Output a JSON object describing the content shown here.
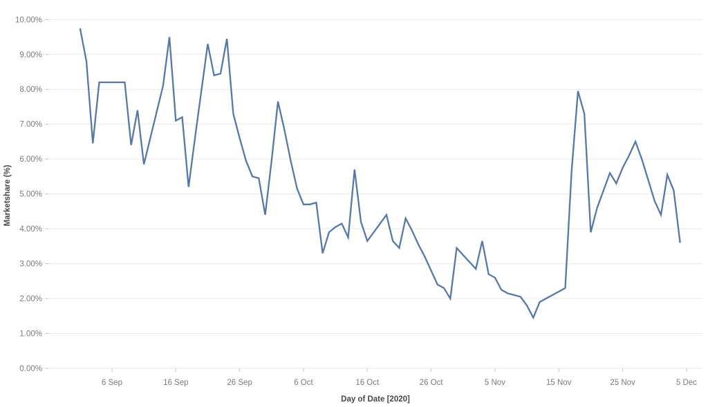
{
  "chart_data": {
    "type": "line",
    "title": "",
    "xlabel": "Day of Date [2020]",
    "ylabel": "Marketshare (%)",
    "ylim": [
      0,
      10
    ],
    "y_tick_labels": [
      "0.00%",
      "1.00%",
      "2.00%",
      "3.00%",
      "4.00%",
      "5.00%",
      "6.00%",
      "7.00%",
      "8.00%",
      "9.00%",
      "10.00%"
    ],
    "x_tick_labels": [
      "6 Sep",
      "16 Sep",
      "26 Sep",
      "6 Oct",
      "16 Oct",
      "26 Oct",
      "5 Nov",
      "15 Nov",
      "25 Nov",
      "5 Dec"
    ],
    "x_tick_day_index": [
      5,
      15,
      25,
      35,
      45,
      55,
      65,
      75,
      85,
      95
    ],
    "grid": "horizontal",
    "legend": "none",
    "series": [
      {
        "name": "Marketshare",
        "color": "#5578a8",
        "dates": [
          "1 Sep",
          "2 Sep",
          "3 Sep",
          "4 Sep",
          "5 Sep",
          "6 Sep",
          "7 Sep",
          "8 Sep",
          "9 Sep",
          "10 Sep",
          "11 Sep",
          "12 Sep",
          "13 Sep",
          "14 Sep",
          "15 Sep",
          "16 Sep",
          "17 Sep",
          "18 Sep",
          "19 Sep",
          "20 Sep",
          "21 Sep",
          "22 Sep",
          "23 Sep",
          "24 Sep",
          "25 Sep",
          "26 Sep",
          "27 Sep",
          "28 Sep",
          "29 Sep",
          "30 Sep",
          "1 Oct",
          "2 Oct",
          "3 Oct",
          "4 Oct",
          "5 Oct",
          "6 Oct",
          "7 Oct",
          "8 Oct",
          "9 Oct",
          "10 Oct",
          "11 Oct",
          "12 Oct",
          "13 Oct",
          "14 Oct",
          "15 Oct",
          "16 Oct",
          "17 Oct",
          "18 Oct",
          "19 Oct",
          "20 Oct",
          "21 Oct",
          "22 Oct",
          "23 Oct",
          "24 Oct",
          "25 Oct",
          "26 Oct",
          "27 Oct",
          "28 Oct",
          "29 Oct",
          "30 Oct",
          "31 Oct",
          "1 Nov",
          "2 Nov",
          "3 Nov",
          "4 Nov",
          "5 Nov",
          "6 Nov",
          "7 Nov",
          "8 Nov",
          "9 Nov",
          "10 Nov",
          "11 Nov",
          "12 Nov",
          "13 Nov",
          "14 Nov",
          "15 Nov",
          "16 Nov",
          "17 Nov",
          "18 Nov",
          "19 Nov",
          "20 Nov",
          "21 Nov",
          "22 Nov",
          "23 Nov",
          "24 Nov",
          "25 Nov",
          "26 Nov",
          "27 Nov",
          "28 Nov",
          "29 Nov",
          "30 Nov",
          "1 Dec",
          "2 Dec",
          "3 Dec",
          "4 Dec"
        ],
        "values": [
          9.75,
          8.8,
          6.45,
          8.2,
          8.2,
          8.2,
          8.2,
          8.2,
          6.4,
          7.4,
          5.85,
          6.6,
          7.35,
          8.1,
          9.5,
          7.1,
          7.2,
          5.2,
          6.6,
          7.95,
          9.3,
          8.4,
          8.45,
          9.45,
          7.3,
          6.6,
          5.95,
          5.5,
          5.45,
          4.4,
          5.95,
          7.65,
          6.85,
          5.95,
          5.15,
          4.7,
          4.7,
          4.75,
          3.3,
          3.9,
          4.05,
          4.15,
          3.75,
          5.7,
          4.2,
          3.65,
          3.9,
          4.15,
          4.4,
          3.65,
          3.45,
          4.3,
          3.95,
          3.55,
          3.2,
          2.8,
          2.4,
          2.3,
          2.0,
          3.45,
          3.25,
          3.05,
          2.85,
          3.65,
          2.7,
          2.6,
          2.25,
          2.15,
          2.1,
          2.05,
          1.8,
          1.45,
          1.9,
          2.0,
          2.1,
          2.2,
          2.3,
          5.65,
          7.95,
          7.3,
          3.9,
          4.6,
          5.1,
          5.6,
          5.3,
          5.75,
          6.1,
          6.5,
          6.0,
          5.4,
          4.8,
          4.4,
          5.55,
          5.1,
          3.6
        ]
      }
    ]
  },
  "colors": {
    "background": "#ffffff",
    "gridline": "#e9e9e9",
    "tick_mark": "#c3c3c3",
    "tick_label": "#7a7a7a",
    "axis_title": "#474747",
    "line": "#5578a8"
  }
}
